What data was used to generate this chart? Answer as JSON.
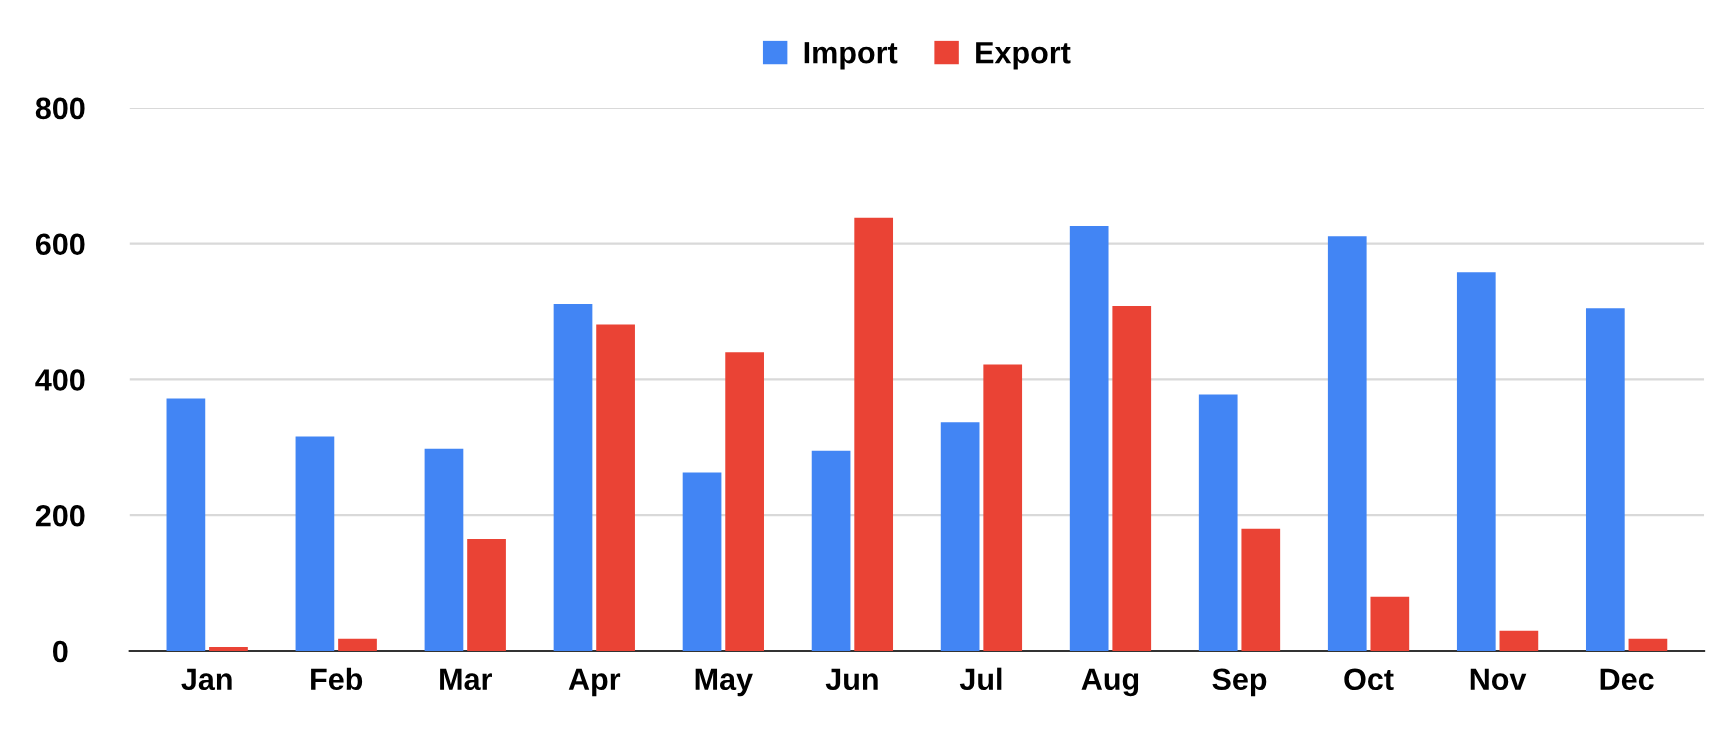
{
  "chart_data": {
    "type": "bar",
    "categories": [
      "Jan",
      "Feb",
      "Mar",
      "Apr",
      "May",
      "Jun",
      "Jul",
      "Aug",
      "Sep",
      "Oct",
      "Nov",
      "Dec"
    ],
    "series": [
      {
        "name": "Import",
        "color": "#4285f4",
        "values": [
          372,
          316,
          298,
          511,
          263,
          295,
          337,
          626,
          378,
          611,
          558,
          505
        ]
      },
      {
        "name": "Export",
        "color": "#ea4335",
        "values": [
          6,
          18,
          165,
          481,
          440,
          638,
          422,
          508,
          180,
          80,
          30,
          18
        ]
      }
    ],
    "ylim": [
      0,
      800
    ],
    "yticks": [
      0,
      200,
      400,
      600,
      800
    ],
    "grid": "y",
    "legend": "top"
  }
}
